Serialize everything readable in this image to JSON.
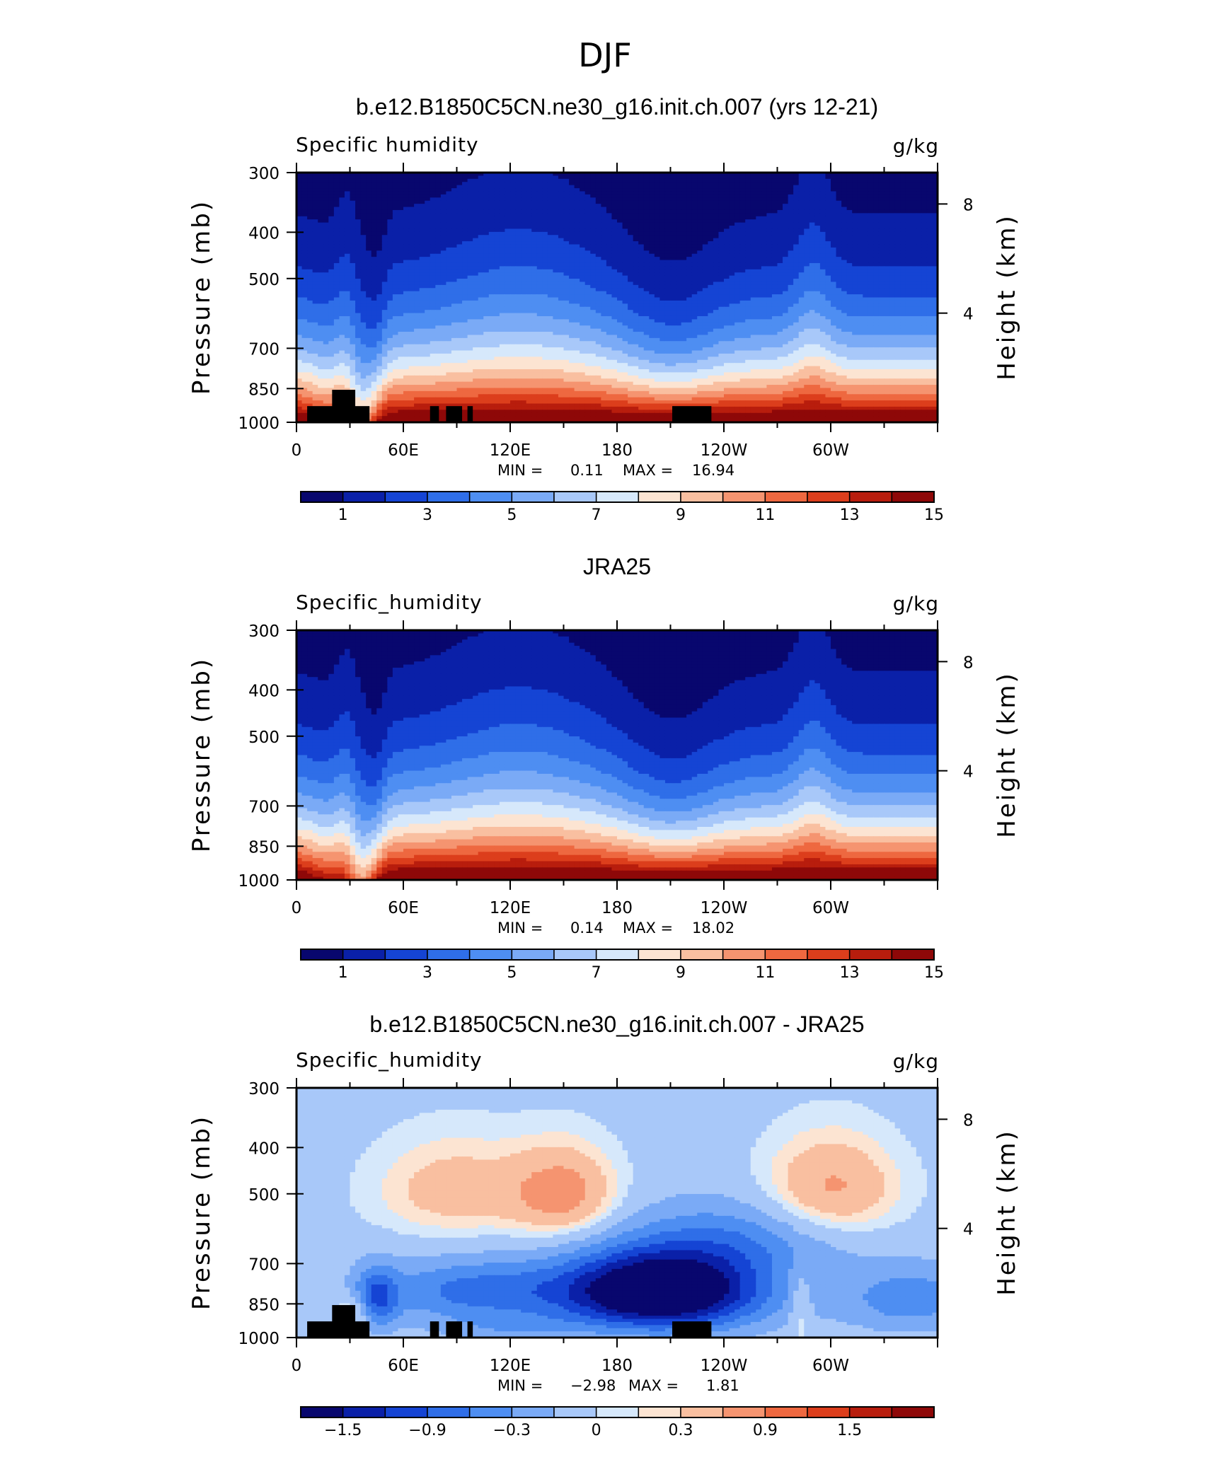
{
  "title": "DJF",
  "colors": {
    "palette": [
      "#08076e",
      "#0a20a8",
      "#1544d4",
      "#2f6ee8",
      "#4e8ef2",
      "#7aaaf6",
      "#a8c8f9",
      "#d6e8fb",
      "#fce4d2",
      "#f9bfa0",
      "#f59470",
      "#ee6840",
      "#dc3e1c",
      "#b81d0d",
      "#8e0808"
    ]
  },
  "chart_data": [
    {
      "type": "heatmap",
      "title": "b.e12.B1850C5CN.ne30_g16.init.ch.007 (yrs 12-21)",
      "variable_label": "Specific humidity",
      "units": "g/kg",
      "ylabel": "Pressure (mb)",
      "ylabel_right": "Height (km)",
      "x_ticks": [
        "0",
        "60E",
        "120E",
        "180",
        "120W",
        "60W"
      ],
      "y_ticks": [
        "300",
        "400",
        "500",
        "700",
        "850",
        "1000"
      ],
      "y_ticks_right": [
        "8",
        "4"
      ],
      "ylim": [
        1000,
        300
      ],
      "stats": {
        "min_label": "MIN =",
        "min": "0.11",
        "max_label": "MAX =",
        "max": "16.94"
      },
      "colorbar_labels": [
        "1",
        "3",
        "5",
        "7",
        "9",
        "11",
        "13",
        "15"
      ],
      "terrain": true
    },
    {
      "type": "heatmap",
      "title": "JRA25",
      "variable_label": "Specific_humidity",
      "units": "g/kg",
      "ylabel": "Pressure (mb)",
      "ylabel_right": "Height (km)",
      "x_ticks": [
        "0",
        "60E",
        "120E",
        "180",
        "120W",
        "60W"
      ],
      "y_ticks": [
        "300",
        "400",
        "500",
        "700",
        "850",
        "1000"
      ],
      "y_ticks_right": [
        "8",
        "4"
      ],
      "ylim": [
        1000,
        300
      ],
      "stats": {
        "min_label": "MIN =",
        "min": "0.14",
        "max_label": "MAX =",
        "max": "18.02"
      },
      "colorbar_labels": [
        "1",
        "3",
        "5",
        "7",
        "9",
        "11",
        "13",
        "15"
      ],
      "terrain": false
    },
    {
      "type": "heatmap",
      "title": "b.e12.B1850C5CN.ne30_g16.init.ch.007 - JRA25",
      "variable_label": "Specific_humidity",
      "units": "g/kg",
      "ylabel": "Pressure (mb)",
      "ylabel_right": "Height (km)",
      "x_ticks": [
        "0",
        "60E",
        "120E",
        "180",
        "120W",
        "60W"
      ],
      "y_ticks": [
        "300",
        "400",
        "500",
        "700",
        "850",
        "1000"
      ],
      "y_ticks_right": [
        "8",
        "4"
      ],
      "ylim": [
        1000,
        300
      ],
      "stats": {
        "min_label": "MIN =",
        "min": "−2.98",
        "max_label": "MAX =",
        "max": "1.81"
      },
      "colorbar_labels": [
        "−1.5",
        "−0.9",
        "−0.3",
        "0",
        "0.3",
        "0.9",
        "1.5"
      ],
      "terrain": true
    }
  ]
}
